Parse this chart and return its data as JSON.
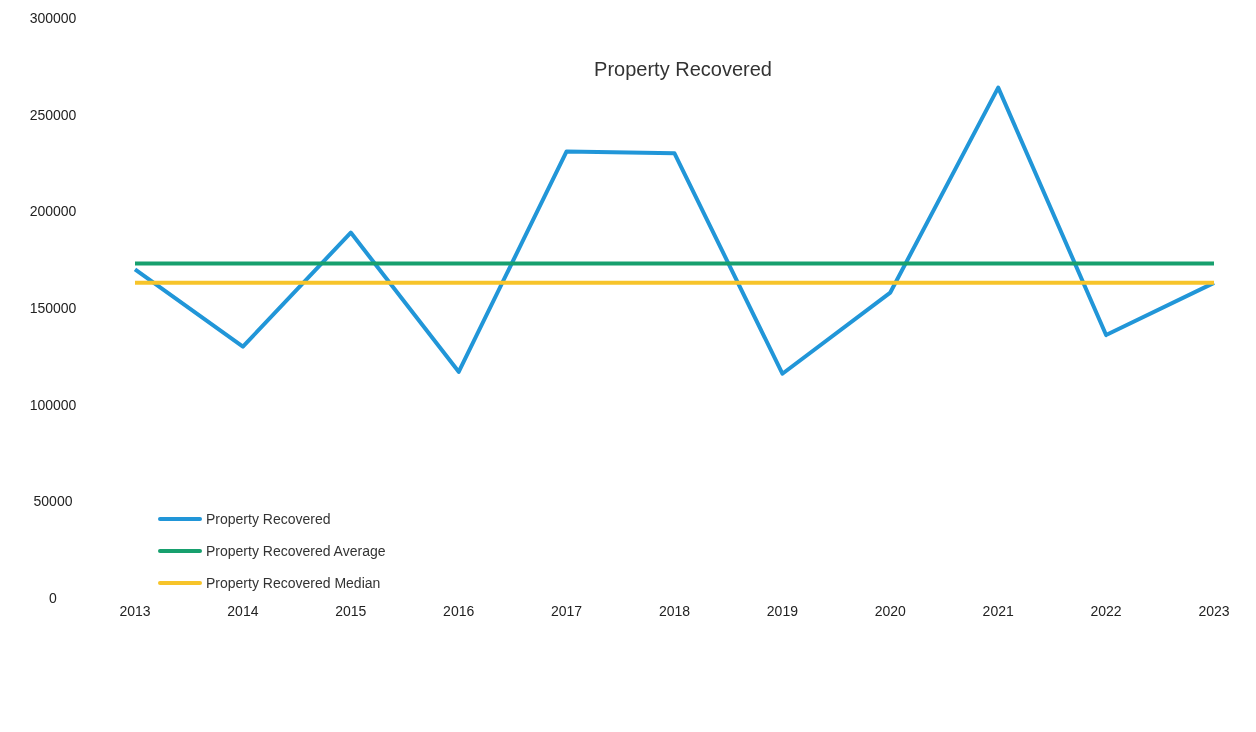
{
  "chart_data": {
    "type": "line",
    "title": "Property Recovered",
    "categories": [
      "2013",
      "2014",
      "2015",
      "2016",
      "2017",
      "2018",
      "2019",
      "2020",
      "2021",
      "2022",
      "2023"
    ],
    "series": [
      {
        "name": "Property Recovered",
        "color": "#2196d8",
        "values": [
          170000,
          130000,
          189000,
          117000,
          231000,
          230000,
          116000,
          158000,
          264000,
          136000,
          163000
        ]
      },
      {
        "name": "Property Recovered Average",
        "color": "#17a06e",
        "values": [
          173000,
          173000,
          173000,
          173000,
          173000,
          173000,
          173000,
          173000,
          173000,
          173000,
          173000
        ]
      },
      {
        "name": "Property Recovered Median",
        "color": "#f7c42a",
        "values": [
          163000,
          163000,
          163000,
          163000,
          163000,
          163000,
          163000,
          163000,
          163000,
          163000,
          163000
        ]
      }
    ],
    "ylim": [
      0,
      300000
    ],
    "yticks": [
      0,
      50000,
      100000,
      150000,
      200000,
      250000,
      300000
    ],
    "legend": "left",
    "marker": "none",
    "line_style": "solid"
  }
}
